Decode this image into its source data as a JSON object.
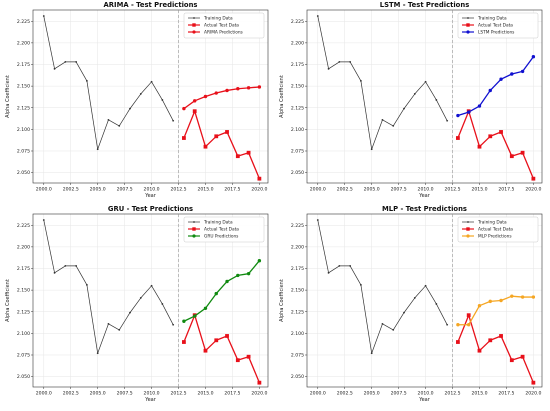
{
  "chart_data": [
    {
      "type": "line",
      "title": "ARIMA - Test Predictions",
      "xlabel": "Year",
      "ylabel": "Alpha Coefficient",
      "xlim": [
        1999.0,
        2020.8
      ],
      "ylim": [
        2.038,
        2.238
      ],
      "xticks": [
        2000.0,
        2002.5,
        2005.0,
        2007.5,
        2010.0,
        2012.5,
        2015.0,
        2017.5,
        2020.0
      ],
      "xtick_labels": [
        "2000.0",
        "2002.5",
        "2005.0",
        "2007.5",
        "2010.0",
        "2012.5",
        "2015.0",
        "2017.5",
        "2020.0"
      ],
      "yticks": [
        2.05,
        2.075,
        2.1,
        2.125,
        2.15,
        2.175,
        2.2,
        2.225
      ],
      "ytick_labels": [
        "2.050",
        "2.075",
        "2.100",
        "2.125",
        "2.150",
        "2.175",
        "2.200",
        "2.225"
      ],
      "split_line_x": 2012.5,
      "legend": "top-right",
      "grid": true,
      "series": [
        {
          "name": "Training Data",
          "color": "#333333",
          "marker": "dot",
          "x": [
            2000,
            2001,
            2002,
            2003,
            2004,
            2005,
            2006,
            2007,
            2008,
            2009,
            2010,
            2011,
            2012
          ],
          "y": [
            2.231,
            2.17,
            2.178,
            2.178,
            2.156,
            2.077,
            2.111,
            2.104,
            2.124,
            2.141,
            2.155,
            2.134,
            2.11
          ]
        },
        {
          "name": "Actual Test Data",
          "color": "#e8101a",
          "marker": "square",
          "x": [
            2013,
            2014,
            2015,
            2016,
            2017,
            2018,
            2019,
            2020
          ],
          "y": [
            2.09,
            2.121,
            2.08,
            2.092,
            2.097,
            2.069,
            2.073,
            2.043
          ]
        },
        {
          "name": "ARIMA Predictions",
          "color": "#e8101a",
          "marker": "circle",
          "x": [
            2013,
            2014,
            2015,
            2016,
            2017,
            2018,
            2019,
            2020
          ],
          "y": [
            2.124,
            2.133,
            2.138,
            2.142,
            2.145,
            2.147,
            2.148,
            2.149
          ]
        }
      ]
    },
    {
      "type": "line",
      "title": "LSTM - Test Predictions",
      "xlabel": "Year",
      "ylabel": "Alpha Coefficient",
      "xlim": [
        1999.0,
        2020.8
      ],
      "ylim": [
        2.038,
        2.238
      ],
      "xticks": [
        2000.0,
        2002.5,
        2005.0,
        2007.5,
        2010.0,
        2012.5,
        2015.0,
        2017.5,
        2020.0
      ],
      "xtick_labels": [
        "2000.0",
        "2002.5",
        "2005.0",
        "2007.5",
        "2010.0",
        "2012.5",
        "2015.0",
        "2017.5",
        "2020.0"
      ],
      "yticks": [
        2.05,
        2.075,
        2.1,
        2.125,
        2.15,
        2.175,
        2.2,
        2.225
      ],
      "ytick_labels": [
        "2.050",
        "2.075",
        "2.100",
        "2.125",
        "2.150",
        "2.175",
        "2.200",
        "2.225"
      ],
      "split_line_x": 2012.5,
      "legend": "top-right",
      "grid": true,
      "series": [
        {
          "name": "Training Data",
          "color": "#333333",
          "marker": "dot",
          "x": [
            2000,
            2001,
            2002,
            2003,
            2004,
            2005,
            2006,
            2007,
            2008,
            2009,
            2010,
            2011,
            2012
          ],
          "y": [
            2.231,
            2.17,
            2.178,
            2.178,
            2.156,
            2.077,
            2.111,
            2.104,
            2.124,
            2.141,
            2.155,
            2.134,
            2.11
          ]
        },
        {
          "name": "Actual Test Data",
          "color": "#e8101a",
          "marker": "square",
          "x": [
            2013,
            2014,
            2015,
            2016,
            2017,
            2018,
            2019,
            2020
          ],
          "y": [
            2.09,
            2.121,
            2.08,
            2.092,
            2.097,
            2.069,
            2.073,
            2.043
          ]
        },
        {
          "name": "LSTM Predictions",
          "color": "#1010d0",
          "marker": "circle",
          "x": [
            2013,
            2014,
            2015,
            2016,
            2017,
            2018,
            2019,
            2020
          ],
          "y": [
            2.116,
            2.12,
            2.127,
            2.145,
            2.158,
            2.164,
            2.167,
            2.184
          ]
        }
      ]
    },
    {
      "type": "line",
      "title": "GRU - Test Predictions",
      "xlabel": "Year",
      "ylabel": "Alpha Coefficient",
      "xlim": [
        1999.0,
        2020.8
      ],
      "ylim": [
        2.038,
        2.238
      ],
      "xticks": [
        2000.0,
        2002.5,
        2005.0,
        2007.5,
        2010.0,
        2012.5,
        2015.0,
        2017.5,
        2020.0
      ],
      "xtick_labels": [
        "2000.0",
        "2002.5",
        "2005.0",
        "2007.5",
        "2010.0",
        "2012.5",
        "2015.0",
        "2017.5",
        "2020.0"
      ],
      "yticks": [
        2.05,
        2.075,
        2.1,
        2.125,
        2.15,
        2.175,
        2.2,
        2.225
      ],
      "ytick_labels": [
        "2.050",
        "2.075",
        "2.100",
        "2.125",
        "2.150",
        "2.175",
        "2.200",
        "2.225"
      ],
      "split_line_x": 2012.5,
      "legend": "top-right",
      "grid": true,
      "series": [
        {
          "name": "Training Data",
          "color": "#333333",
          "marker": "dot",
          "x": [
            2000,
            2001,
            2002,
            2003,
            2004,
            2005,
            2006,
            2007,
            2008,
            2009,
            2010,
            2011,
            2012
          ],
          "y": [
            2.231,
            2.17,
            2.178,
            2.178,
            2.156,
            2.077,
            2.111,
            2.104,
            2.124,
            2.141,
            2.155,
            2.134,
            2.11
          ]
        },
        {
          "name": "Actual Test Data",
          "color": "#e8101a",
          "marker": "square",
          "x": [
            2013,
            2014,
            2015,
            2016,
            2017,
            2018,
            2019,
            2020
          ],
          "y": [
            2.09,
            2.121,
            2.08,
            2.092,
            2.097,
            2.069,
            2.073,
            2.043
          ]
        },
        {
          "name": "GRU Predictions",
          "color": "#108a10",
          "marker": "circle",
          "x": [
            2013,
            2014,
            2015,
            2016,
            2017,
            2018,
            2019,
            2020
          ],
          "y": [
            2.114,
            2.12,
            2.129,
            2.146,
            2.16,
            2.167,
            2.169,
            2.184
          ]
        }
      ]
    },
    {
      "type": "line",
      "title": "MLP - Test Predictions",
      "xlabel": "Year",
      "ylabel": "Alpha Coefficient",
      "xlim": [
        1999.0,
        2020.8
      ],
      "ylim": [
        2.038,
        2.238
      ],
      "xticks": [
        2000.0,
        2002.5,
        2005.0,
        2007.5,
        2010.0,
        2012.5,
        2015.0,
        2017.5,
        2020.0
      ],
      "xtick_labels": [
        "2000.0",
        "2002.5",
        "2005.0",
        "2007.5",
        "2010.0",
        "2012.5",
        "2015.0",
        "2017.5",
        "2020.0"
      ],
      "yticks": [
        2.05,
        2.075,
        2.1,
        2.125,
        2.15,
        2.175,
        2.2,
        2.225
      ],
      "ytick_labels": [
        "2.050",
        "2.075",
        "2.100",
        "2.125",
        "2.150",
        "2.175",
        "2.200",
        "2.225"
      ],
      "split_line_x": 2012.5,
      "legend": "top-right",
      "grid": true,
      "series": [
        {
          "name": "Training Data",
          "color": "#333333",
          "marker": "dot",
          "x": [
            2000,
            2001,
            2002,
            2003,
            2004,
            2005,
            2006,
            2007,
            2008,
            2009,
            2010,
            2011,
            2012
          ],
          "y": [
            2.231,
            2.17,
            2.178,
            2.178,
            2.156,
            2.077,
            2.111,
            2.104,
            2.124,
            2.141,
            2.155,
            2.134,
            2.11
          ]
        },
        {
          "name": "Actual Test Data",
          "color": "#e8101a",
          "marker": "square",
          "x": [
            2013,
            2014,
            2015,
            2016,
            2017,
            2018,
            2019,
            2020
          ],
          "y": [
            2.09,
            2.121,
            2.08,
            2.092,
            2.097,
            2.069,
            2.073,
            2.043
          ]
        },
        {
          "name": "MLP Predictions",
          "color": "#f5a623",
          "marker": "circle",
          "x": [
            2013,
            2014,
            2015,
            2016,
            2017,
            2018,
            2019,
            2020
          ],
          "y": [
            2.11,
            2.11,
            2.132,
            2.137,
            2.138,
            2.143,
            2.142,
            2.142
          ]
        }
      ]
    }
  ]
}
